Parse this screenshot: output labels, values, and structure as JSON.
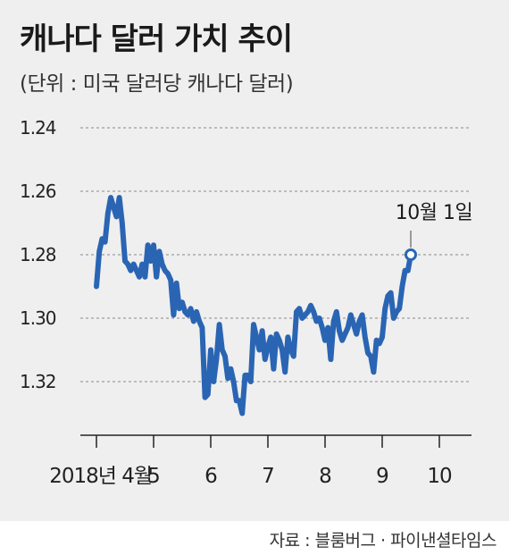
{
  "header": {
    "title": "캐나다 달러 가치 추이",
    "subtitle": "(단위 : 미국 달러당 캐나다 달러)"
  },
  "source": "자료 : 블룸버그 · 파이낸셜타임스",
  "colors": {
    "line": "#2a65b4",
    "grid": "#888888",
    "panel": "#efefef"
  },
  "chart_data": {
    "type": "line",
    "title": "캐나다 달러 가치 추이",
    "subtitle": "(단위 : 미국 달러당 캐나다 달러)",
    "y_axis": {
      "inverted": true,
      "ylim": [
        1.24,
        1.33
      ],
      "ticks": [
        1.24,
        1.26,
        1.28,
        1.3,
        1.32
      ],
      "tick_labels": [
        "1.24",
        "1.26",
        "1.28",
        "1.30",
        "1.32"
      ]
    },
    "x_axis": {
      "ticks": [
        {
          "month": 4,
          "label": "2018년 4월"
        },
        {
          "month": 5,
          "label": "5"
        },
        {
          "month": 6,
          "label": "6"
        },
        {
          "month": 7,
          "label": "7"
        },
        {
          "month": 8,
          "label": "8"
        },
        {
          "month": 9,
          "label": "9"
        },
        {
          "month": 10,
          "label": "10"
        }
      ]
    },
    "grid": "horizontal-dashed",
    "series": [
      {
        "x": [
          4.0,
          4.05,
          4.1,
          4.15,
          4.2,
          4.25,
          4.3,
          4.35,
          4.4,
          4.45,
          4.5,
          4.55,
          4.6,
          4.65,
          4.7,
          4.75,
          4.8,
          4.85,
          4.9,
          4.95,
          5.0,
          5.05,
          5.1,
          5.15,
          5.2,
          5.25,
          5.3,
          5.35,
          5.4,
          5.45,
          5.5,
          5.55,
          5.6,
          5.65,
          5.7,
          5.75,
          5.8,
          5.85,
          5.9,
          5.95,
          6.0,
          6.05,
          6.1,
          6.15,
          6.2,
          6.25,
          6.3,
          6.35,
          6.4,
          6.45,
          6.5,
          6.55,
          6.6,
          6.65,
          6.7,
          6.75,
          6.8,
          6.85,
          6.9,
          6.95,
          7.0,
          7.05,
          7.1,
          7.15,
          7.2,
          7.25,
          7.3,
          7.35,
          7.4,
          7.45,
          7.5,
          7.55,
          7.6,
          7.65,
          7.7,
          7.75,
          7.8,
          7.85,
          7.9,
          7.95,
          8.0,
          8.05,
          8.1,
          8.15,
          8.2,
          8.25,
          8.3,
          8.35,
          8.4,
          8.45,
          8.5,
          8.55,
          8.6,
          8.65,
          8.7,
          8.75,
          8.8,
          8.85,
          8.9,
          8.95,
          9.0,
          9.05,
          9.1,
          9.15,
          9.2,
          9.25,
          9.3,
          9.35,
          9.4,
          9.45,
          9.5
        ],
        "values": [
          1.29,
          1.279,
          1.275,
          1.276,
          1.267,
          1.262,
          1.265,
          1.268,
          1.262,
          1.27,
          1.282,
          1.283,
          1.285,
          1.283,
          1.285,
          1.287,
          1.283,
          1.287,
          1.277,
          1.282,
          1.277,
          1.287,
          1.279,
          1.283,
          1.285,
          1.286,
          1.288,
          1.299,
          1.289,
          1.297,
          1.295,
          1.298,
          1.299,
          1.297,
          1.301,
          1.298,
          1.301,
          1.303,
          1.325,
          1.324,
          1.31,
          1.32,
          1.313,
          1.302,
          1.31,
          1.312,
          1.319,
          1.316,
          1.32,
          1.326,
          1.326,
          1.33,
          1.318,
          1.318,
          1.32,
          1.302,
          1.306,
          1.31,
          1.304,
          1.313,
          1.309,
          1.306,
          1.316,
          1.305,
          1.307,
          1.31,
          1.317,
          1.306,
          1.31,
          1.312,
          1.298,
          1.297,
          1.3,
          1.299,
          1.298,
          1.296,
          1.298,
          1.301,
          1.3,
          1.303,
          1.307,
          1.303,
          1.313,
          1.301,
          1.298,
          1.304,
          1.307,
          1.305,
          1.303,
          1.299,
          1.302,
          1.305,
          1.301,
          1.299,
          1.306,
          1.311,
          1.312,
          1.317,
          1.307,
          1.308,
          1.306,
          1.297,
          1.293,
          1.292,
          1.3,
          1.298,
          1.297,
          1.29,
          1.285,
          1.285,
          1.28
        ]
      }
    ],
    "annotations": [
      {
        "x": 9.5,
        "y": 1.28,
        "text": "10월 1일"
      }
    ]
  }
}
